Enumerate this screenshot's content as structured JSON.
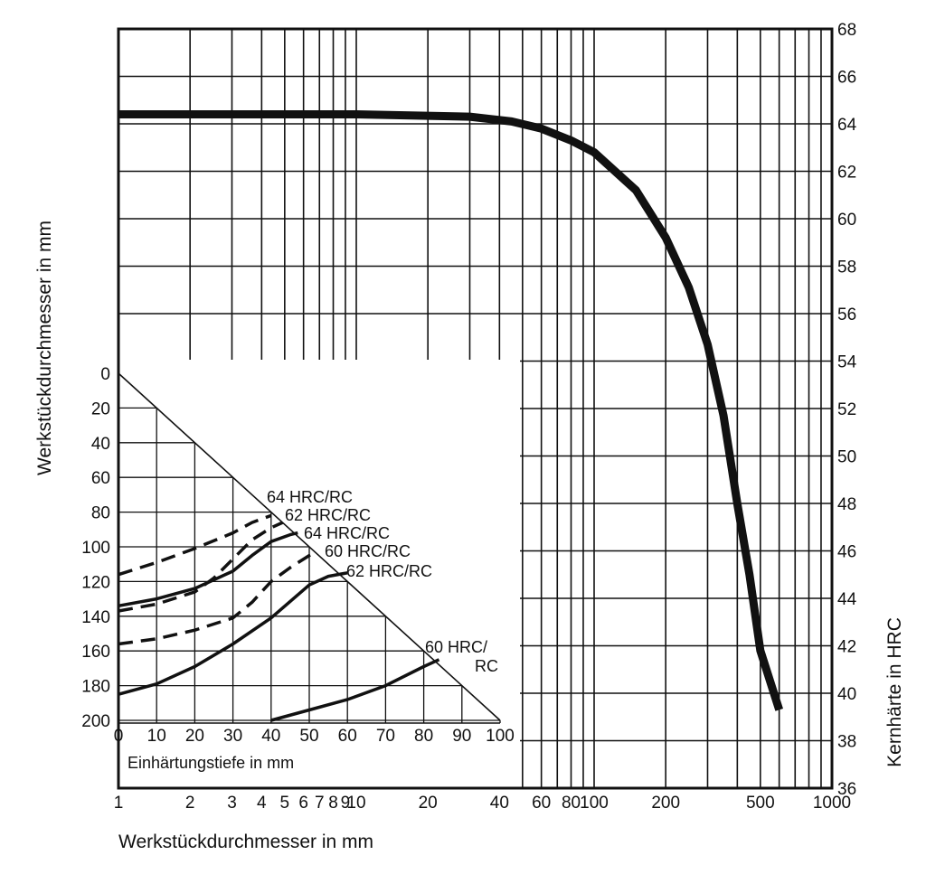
{
  "chart_data": [
    {
      "type": "line",
      "title": "",
      "xlabel": "Werkstückdurchmesser in mm",
      "ylabel": "Kernhärte in HRC",
      "x_scale": "log",
      "xlim": [
        1,
        1000
      ],
      "ylim": [
        36,
        68
      ],
      "grid": true,
      "x_ticks": [
        "1",
        "2",
        "3",
        "4",
        "5",
        "6",
        "7",
        "8",
        "9",
        "10",
        "20",
        "40",
        "60",
        "80",
        "100",
        "200",
        "500",
        "1000"
      ],
      "y_ticks": [
        "36",
        "38",
        "40",
        "42",
        "44",
        "46",
        "48",
        "50",
        "52",
        "54",
        "56",
        "58",
        "60",
        "62",
        "64",
        "66",
        "68"
      ],
      "series": [
        {
          "x": [
            1,
            10,
            30,
            45,
            60,
            80,
            100,
            150,
            200,
            250,
            300,
            350,
            400,
            450,
            500,
            600
          ],
          "y": [
            64.4,
            64.4,
            64.3,
            64.1,
            63.8,
            63.3,
            62.8,
            61.2,
            59.2,
            57.1,
            54.7,
            51.7,
            48.0,
            45.0,
            41.8,
            39.3
          ]
        }
      ]
    },
    {
      "type": "line",
      "title": "",
      "xlabel": "Einhärtungstiefe in mm",
      "ylabel": "Werkstückdurchmesser in mm",
      "xlim": [
        0,
        100
      ],
      "ylim": [
        200,
        0
      ],
      "grid": true,
      "x_ticks": [
        "0",
        "10",
        "20",
        "30",
        "40",
        "50",
        "60",
        "70",
        "80",
        "90",
        "100"
      ],
      "y_ticks": [
        "0",
        "20",
        "40",
        "60",
        "80",
        "100",
        "120",
        "140",
        "160",
        "180",
        "200"
      ],
      "series": [
        {
          "name": "64 HRC/RC",
          "style": "dashed",
          "x": [
            0,
            10,
            20,
            30,
            35,
            40
          ],
          "y": [
            116,
            109,
            101,
            92,
            86,
            82
          ]
        },
        {
          "name": "62 HRC/RC",
          "style": "dashed",
          "x": [
            0,
            10,
            20,
            25,
            30,
            35,
            40,
            43
          ],
          "y": [
            137,
            133,
            126,
            118,
            107,
            96,
            89,
            86
          ]
        },
        {
          "name": "64 HRC/RC",
          "style": "solid",
          "x": [
            0,
            10,
            20,
            30,
            35,
            40,
            45,
            47
          ],
          "y": [
            134,
            130,
            124,
            114,
            105,
            97,
            93,
            92
          ]
        },
        {
          "name": "60 HRC/RC",
          "style": "dashed",
          "x": [
            0,
            10,
            20,
            30,
            35,
            40,
            45,
            50,
            52
          ],
          "y": [
            156,
            153,
            148,
            141,
            132,
            120,
            112,
            105,
            103
          ]
        },
        {
          "name": "62 HRC/RC",
          "style": "solid",
          "x": [
            0,
            10,
            20,
            30,
            40,
            50,
            55,
            60
          ],
          "y": [
            185,
            179,
            169,
            156,
            141,
            122,
            117,
            115
          ]
        },
        {
          "name": "60 HRC/RC",
          "style": "solid",
          "x": [
            40,
            50,
            60,
            70,
            80,
            84
          ],
          "y": [
            200,
            194,
            188,
            180,
            169,
            165
          ]
        }
      ],
      "annotations": [
        "64 HRC/RC",
        "62 HRC/RC",
        "64 HRC/RC",
        "60 HRC/RC",
        "62 HRC/RC",
        "60 HRC/",
        "RC"
      ]
    }
  ]
}
